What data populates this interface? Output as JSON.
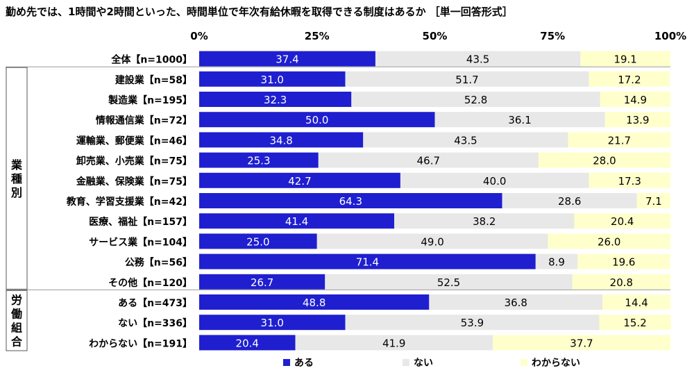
{
  "title": "勤め先では、1時間や2時間といった、時間単位で年次有給休暇を取得できる制度はあるか ［単一回答形式］",
  "groups": [
    {
      "label": "業種別",
      "chars": [
        "業",
        "種",
        "別"
      ]
    },
    {
      "label": "労働組合",
      "chars": [
        "労",
        "働",
        "組",
        "合"
      ]
    }
  ],
  "colors": {
    "aru": "#1f1fd0",
    "nai": "#e8e8e8",
    "wakaranai": "#ffffcc"
  },
  "chart_data": {
    "type": "bar",
    "orientation": "horizontal-stacked-100",
    "xlim": [
      0,
      100
    ],
    "ticks": [
      "0%",
      "25%",
      "50%",
      "75%",
      "100%"
    ],
    "categories": [
      "全体【n=1000】",
      "建設業【n=58】",
      "製造業【n=195】",
      "情報通信業【n=72】",
      "運輸業、郵便業【n=46】",
      "卸売業、小売業【n=75】",
      "金融業、保険業【n=75】",
      "教育、学習支援業【n=42】",
      "医療、福祉【n=157】",
      "サービス業【n=104】",
      "公務【n=56】",
      "その他【n=120】",
      "ある【n=473】",
      "ない【n=336】",
      "わからない【n=191】"
    ],
    "series": [
      {
        "name": "ある",
        "values": [
          37.4,
          31.0,
          32.3,
          50.0,
          34.8,
          25.3,
          42.7,
          64.3,
          41.4,
          25.0,
          71.4,
          26.7,
          48.8,
          31.0,
          20.4
        ]
      },
      {
        "name": "ない",
        "values": [
          43.5,
          51.7,
          52.8,
          36.1,
          43.5,
          46.7,
          40.0,
          28.6,
          38.2,
          49.0,
          8.9,
          52.5,
          36.8,
          53.9,
          41.9
        ]
      },
      {
        "name": "わからない",
        "values": [
          19.1,
          17.2,
          14.9,
          13.9,
          21.7,
          28.0,
          17.3,
          7.1,
          20.4,
          26.0,
          19.6,
          20.8,
          14.4,
          15.2,
          37.7
        ]
      }
    ],
    "legend_position": "bottom"
  }
}
